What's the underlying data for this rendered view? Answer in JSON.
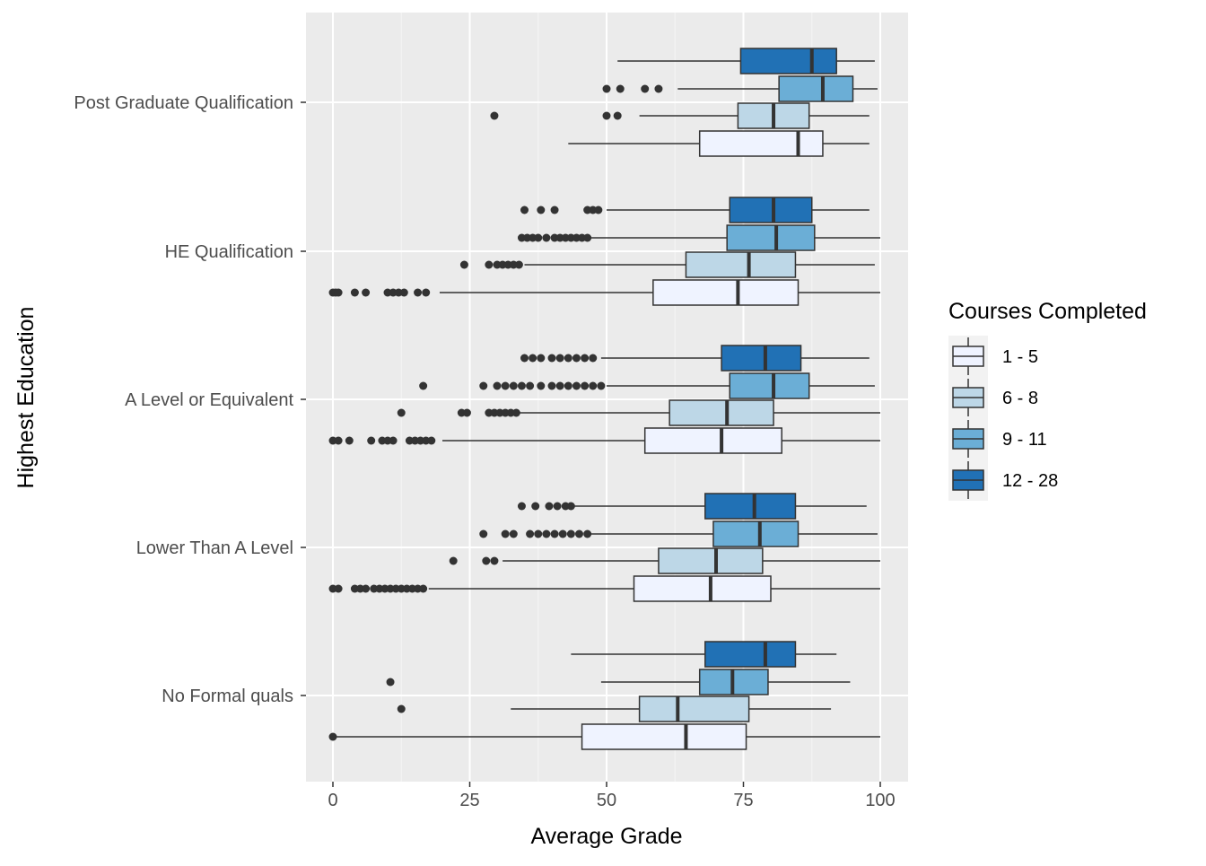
{
  "chart_data": {
    "type": "boxplot",
    "orientation": "horizontal",
    "xlabel": "Average Grade",
    "ylabel": "Highest Education",
    "xlim": [
      -5,
      105
    ],
    "x_ticks": [
      0,
      25,
      50,
      75,
      100
    ],
    "grid": true,
    "legend": {
      "title": "Courses Completed",
      "position": "right",
      "entries": [
        {
          "label": "1 - 5",
          "color": "#eff3ff"
        },
        {
          "label": "6 - 8",
          "color": "#bdd7e7"
        },
        {
          "label": "9 - 11",
          "color": "#6baed6"
        },
        {
          "label": "12 - 28",
          "color": "#2171b5"
        }
      ]
    },
    "categories": [
      "No Formal quals",
      "Lower Than A Level",
      "A Level or Equivalent",
      "HE Qualification",
      "Post Graduate Qualification"
    ],
    "groups": [
      {
        "category": "Post Graduate Qualification",
        "boxes": [
          {
            "series": "1 - 5",
            "whisker_low": 43,
            "q1": 67,
            "median": 85,
            "q3": 89.5,
            "whisker_high": 98,
            "outliers": []
          },
          {
            "series": "6 - 8",
            "whisker_low": 56,
            "q1": 74,
            "median": 80.5,
            "q3": 87,
            "whisker_high": 98,
            "outliers": [
              29.5,
              50,
              52
            ]
          },
          {
            "series": "9 - 11",
            "whisker_low": 63,
            "q1": 81.5,
            "median": 89.5,
            "q3": 95,
            "whisker_high": 99.5,
            "outliers": [
              50,
              52.5,
              57,
              59.5
            ]
          },
          {
            "series": "12 - 28",
            "whisker_low": 52,
            "q1": 74.5,
            "median": 87.5,
            "q3": 92,
            "whisker_high": 99,
            "outliers": []
          }
        ]
      },
      {
        "category": "HE Qualification",
        "boxes": [
          {
            "series": "1 - 5",
            "whisker_low": 19.5,
            "q1": 58.5,
            "median": 74,
            "q3": 85,
            "whisker_high": 100,
            "outliers": [
              0,
              0.5,
              1,
              4,
              6,
              10,
              11,
              12,
              13,
              15.5,
              17
            ]
          },
          {
            "series": "6 - 8",
            "whisker_low": 35,
            "q1": 64.5,
            "median": 76,
            "q3": 84.5,
            "whisker_high": 99,
            "outliers": [
              24,
              28.5,
              30,
              31,
              32,
              33,
              34
            ]
          },
          {
            "series": "9 - 11",
            "whisker_low": 47,
            "q1": 72,
            "median": 81,
            "q3": 88,
            "whisker_high": 100,
            "outliers": [
              34.5,
              35.5,
              36.5,
              37.5,
              39,
              40.5,
              41.5,
              42.5,
              43.5,
              44.5,
              45.5,
              46.5
            ]
          },
          {
            "series": "12 - 28",
            "whisker_low": 50,
            "q1": 72.5,
            "median": 80.5,
            "q3": 87.5,
            "whisker_high": 98,
            "outliers": [
              35,
              38,
              40.5,
              46.5,
              47.5,
              48.5
            ]
          }
        ]
      },
      {
        "category": "A Level or Equivalent",
        "boxes": [
          {
            "series": "1 - 5",
            "whisker_low": 20,
            "q1": 57,
            "median": 71,
            "q3": 82,
            "whisker_high": 100,
            "outliers": [
              0,
              1,
              3,
              7,
              9,
              10,
              11,
              14,
              15,
              16,
              17,
              18
            ]
          },
          {
            "series": "6 - 8",
            "whisker_low": 34,
            "q1": 61.5,
            "median": 72,
            "q3": 80.5,
            "whisker_high": 100,
            "outliers": [
              12.5,
              23.5,
              24.5,
              28.5,
              29.5,
              30.5,
              31.5,
              32.5,
              33.5
            ]
          },
          {
            "series": "9 - 11",
            "whisker_low": 50,
            "q1": 72.5,
            "median": 80.5,
            "q3": 87,
            "whisker_high": 99,
            "outliers": [
              16.5,
              27.5,
              30,
              31.5,
              33,
              34.5,
              36,
              38,
              40,
              41.5,
              43,
              44.5,
              46,
              47.5,
              49
            ]
          },
          {
            "series": "12 - 28",
            "whisker_low": 49,
            "q1": 71,
            "median": 79,
            "q3": 85.5,
            "whisker_high": 98,
            "outliers": [
              35,
              36.5,
              38,
              40,
              41.5,
              43,
              44.5,
              46,
              47.5
            ]
          }
        ]
      },
      {
        "category": "Lower Than A Level",
        "boxes": [
          {
            "series": "1 - 5",
            "whisker_low": 17.5,
            "q1": 55,
            "median": 69,
            "q3": 80,
            "whisker_high": 100,
            "outliers": [
              0,
              1,
              4,
              5,
              6,
              7.5,
              8.5,
              9.5,
              10.5,
              11.5,
              12.5,
              13.5,
              14.5,
              15.5,
              16.5
            ]
          },
          {
            "series": "6 - 8",
            "whisker_low": 31,
            "q1": 59.5,
            "median": 70,
            "q3": 78.5,
            "whisker_high": 100,
            "outliers": [
              22,
              28,
              29.5
            ]
          },
          {
            "series": "9 - 11",
            "whisker_low": 47,
            "q1": 69.5,
            "median": 78,
            "q3": 85,
            "whisker_high": 99.5,
            "outliers": [
              27.5,
              31.5,
              33,
              36,
              37.5,
              39,
              40.5,
              42,
              43.5,
              45,
              46.5
            ]
          },
          {
            "series": "12 - 28",
            "whisker_low": 44,
            "q1": 68,
            "median": 77,
            "q3": 84.5,
            "whisker_high": 97.5,
            "outliers": [
              34.5,
              37,
              39.5,
              41,
              42.5,
              43.5
            ]
          }
        ]
      },
      {
        "category": "No Formal quals",
        "boxes": [
          {
            "series": "1 - 5",
            "whisker_low": 0,
            "q1": 45.5,
            "median": 64.5,
            "q3": 75.5,
            "whisker_high": 100,
            "outliers": [
              0
            ]
          },
          {
            "series": "6 - 8",
            "whisker_low": 32.5,
            "q1": 56,
            "median": 63,
            "q3": 76,
            "whisker_high": 91,
            "outliers": [
              12.5
            ]
          },
          {
            "series": "9 - 11",
            "whisker_low": 49,
            "q1": 67,
            "median": 73,
            "q3": 79.5,
            "whisker_high": 94.5,
            "outliers": [
              10.5
            ]
          },
          {
            "series": "12 - 28",
            "whisker_low": 43.5,
            "q1": 68,
            "median": 79,
            "q3": 84.5,
            "whisker_high": 92,
            "outliers": []
          }
        ]
      }
    ]
  }
}
